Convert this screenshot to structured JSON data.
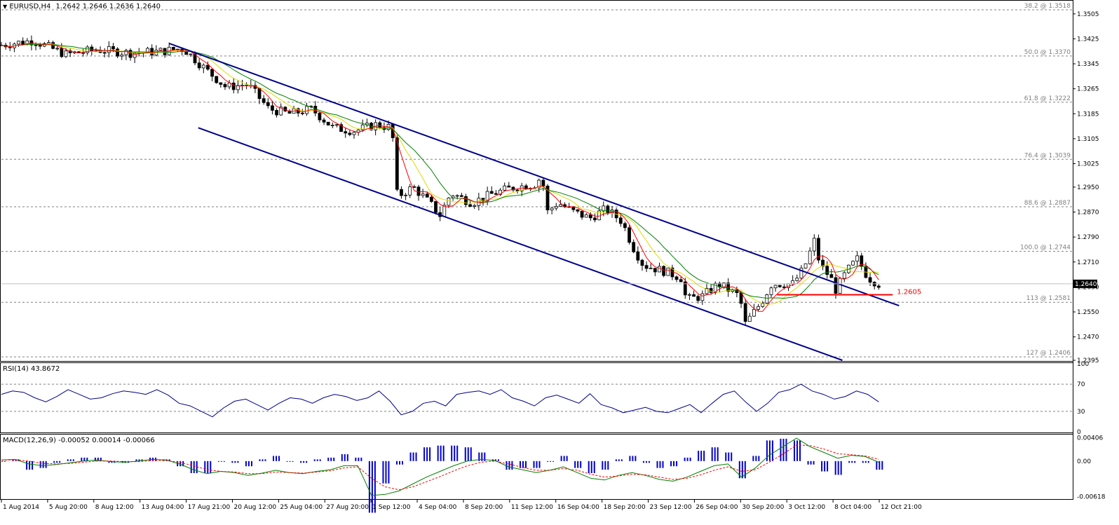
{
  "header": {
    "symbol_label": "EURUSD,H4",
    "ohlc": "1.2642 1.2646 1.2636 1.2640"
  },
  "rsi_label": "RSI(14) 43.8672",
  "macd_label": "MACD(12,26,9) -0.00052 0.00014 -0.00066",
  "chart_data": [
    {
      "type": "candlestick",
      "name": "EURUSD,H4",
      "ylim": [
        1.2395,
        1.3545
      ],
      "y_ticks": [
        "1.3505",
        "1.3425",
        "1.3345",
        "1.3265",
        "1.3185",
        "1.3105",
        "1.3025",
        "1.2950",
        "1.2870",
        "1.2790",
        "1.2710",
        "1.2630",
        "1.2550",
        "1.2470",
        "1.2395"
      ],
      "x_ticks": [
        "1 Aug 2014",
        "5 Aug 20:00",
        "8 Aug 12:00",
        "13 Aug 04:00",
        "17 Aug 21:00",
        "20 Aug 12:00",
        "25 Aug 04:00",
        "27 Aug 20:00",
        "1 Sep 12:00",
        "4 Sep 04:00",
        "8 Sep 20:00",
        "11 Sep 12:00",
        "16 Sep 04:00",
        "18 Sep 20:00",
        "23 Sep 12:00",
        "26 Sep 04:00",
        "30 Sep 20:00",
        "3 Oct 12:00",
        "8 Oct 04:00",
        "12 Oct 21:00"
      ],
      "current_price": "1.2640",
      "fib_levels": [
        {
          "label": "38.2 @ 1.3518",
          "price": 1.3518
        },
        {
          "label": "50.0 @ 1.3370",
          "price": 1.337
        },
        {
          "label": "61.8 @ 1.3222",
          "price": 1.3222
        },
        {
          "label": "76.4 @ 1.3039",
          "price": 1.3039
        },
        {
          "label": "88.6 @ 1.2887",
          "price": 1.2887
        },
        {
          "label": "100.0 @ 1.2744",
          "price": 1.2744
        },
        {
          "label": "113 @ 1.2581",
          "price": 1.2581
        },
        {
          "label": "127 @ 1.2406",
          "price": 1.2406
        }
      ],
      "support": {
        "label": "1.2605",
        "price": 1.2605
      },
      "channel": {
        "upper": [
          {
            "bar": 0.157,
            "price": 1.341
          },
          {
            "bar": 0.839,
            "price": 1.257
          }
        ],
        "lower": [
          {
            "bar": 0.184,
            "price": 1.314
          },
          {
            "bar": 0.786,
            "price": 1.2395
          }
        ]
      },
      "price_path": [
        [
          0,
          1.3405
        ],
        [
          0.03,
          1.342
        ],
        [
          0.06,
          1.3375
        ],
        [
          0.09,
          1.339
        ],
        [
          0.12,
          1.338
        ],
        [
          0.15,
          1.3385
        ],
        [
          0.17,
          1.3395
        ],
        [
          0.19,
          1.333
        ],
        [
          0.21,
          1.327
        ],
        [
          0.23,
          1.328
        ],
        [
          0.25,
          1.32
        ],
        [
          0.27,
          1.3185
        ],
        [
          0.29,
          1.32
        ],
        [
          0.31,
          1.314
        ],
        [
          0.33,
          1.313
        ],
        [
          0.35,
          1.315
        ],
        [
          0.365,
          1.314
        ],
        [
          0.37,
          1.292
        ],
        [
          0.385,
          1.295
        ],
        [
          0.4,
          1.29
        ],
        [
          0.41,
          1.286
        ],
        [
          0.42,
          1.293
        ],
        [
          0.44,
          1.29
        ],
        [
          0.46,
          1.293
        ],
        [
          0.48,
          1.295
        ],
        [
          0.5,
          1.296
        ],
        [
          0.505,
          1.299
        ],
        [
          0.51,
          1.287
        ],
        [
          0.52,
          1.29
        ],
        [
          0.535,
          1.287
        ],
        [
          0.55,
          1.285
        ],
        [
          0.565,
          1.288
        ],
        [
          0.58,
          1.284
        ],
        [
          0.59,
          1.276
        ],
        [
          0.6,
          1.27
        ],
        [
          0.62,
          1.268
        ],
        [
          0.635,
          1.266
        ],
        [
          0.64,
          1.259
        ],
        [
          0.655,
          1.26
        ],
        [
          0.67,
          1.264
        ],
        [
          0.68,
          1.262
        ],
        [
          0.69,
          1.26
        ],
        [
          0.695,
          1.251
        ],
        [
          0.71,
          1.258
        ],
        [
          0.72,
          1.264
        ],
        [
          0.74,
          1.264
        ],
        [
          0.75,
          1.269
        ],
        [
          0.76,
          1.278
        ],
        [
          0.765,
          1.27
        ],
        [
          0.775,
          1.266
        ],
        [
          0.78,
          1.262
        ],
        [
          0.79,
          1.268
        ],
        [
          0.8,
          1.272
        ],
        [
          0.81,
          1.266
        ],
        [
          0.82,
          1.264
        ]
      ]
    },
    {
      "type": "line",
      "name": "RSI(14)",
      "ylim": [
        0,
        100
      ],
      "y_ticks": [
        "100",
        "70",
        "30",
        "0"
      ],
      "last": 43.8672,
      "values": [
        55,
        60,
        58,
        50,
        44,
        52,
        62,
        55,
        48,
        50,
        56,
        60,
        58,
        55,
        62,
        54,
        42,
        38,
        30,
        22,
        35,
        45,
        48,
        40,
        32,
        42,
        50,
        48,
        42,
        50,
        55,
        52,
        46,
        50,
        60,
        45,
        25,
        30,
        42,
        45,
        38,
        55,
        58,
        60,
        55,
        62,
        50,
        45,
        38,
        50,
        54,
        48,
        42,
        56,
        40,
        35,
        28,
        32,
        36,
        30,
        28,
        34,
        40,
        28,
        42,
        55,
        60,
        44,
        30,
        42,
        58,
        62,
        70,
        60,
        55,
        48,
        52,
        60,
        55,
        44
      ]
    },
    {
      "type": "line",
      "name": "MACD(12,26,9)",
      "ylim": [
        -0.0065,
        0.0045
      ],
      "y_ticks": [
        "0.00406",
        "0.00",
        "-0.00618"
      ],
      "values_text": "-0.00052 0.00014 -0.00066",
      "macd": [
        0.0002,
        0.0003,
        -0.0005,
        -0.0008,
        -0.0006,
        -0.0003,
        0.0,
        0.0002,
        -0.0001,
        -0.0002,
        0.0,
        0.0003,
        0.0002,
        -0.0005,
        -0.0015,
        -0.0022,
        -0.0018,
        -0.002,
        -0.0025,
        -0.0021,
        -0.0016,
        -0.002,
        -0.0022,
        -0.0018,
        -0.0015,
        -0.0008,
        -0.0008,
        -0.006,
        -0.0058,
        -0.0052,
        -0.004,
        -0.0028,
        -0.0018,
        -0.0008,
        0.0,
        0.0003,
        0.0001,
        -0.001,
        -0.0015,
        -0.002,
        -0.0016,
        -0.001,
        -0.002,
        -0.003,
        -0.0033,
        -0.0025,
        -0.002,
        -0.0025,
        -0.0032,
        -0.0035,
        -0.0028,
        -0.0018,
        -0.0008,
        -0.0005,
        -0.0028,
        -0.0012,
        0.001,
        0.0025,
        0.004,
        0.0025,
        0.0015,
        0.0005,
        0.001,
        0.0008,
        -0.0002
      ],
      "signal": [
        0.0002,
        0.0002,
        0.0,
        -0.0004,
        -0.0005,
        -0.0004,
        -0.0002,
        0.0,
        0.0,
        -0.0001,
        -0.0001,
        0.0001,
        0.0001,
        -0.0002,
        -0.0008,
        -0.0015,
        -0.0018,
        -0.0019,
        -0.0022,
        -0.0022,
        -0.0019,
        -0.002,
        -0.0021,
        -0.0019,
        -0.0017,
        -0.0012,
        -0.001,
        -0.003,
        -0.0045,
        -0.005,
        -0.0045,
        -0.0036,
        -0.0027,
        -0.0017,
        -0.0008,
        -0.0002,
        0.0,
        -0.0005,
        -0.0011,
        -0.0016,
        -0.0016,
        -0.0013,
        -0.0016,
        -0.0023,
        -0.0028,
        -0.0026,
        -0.0023,
        -0.0024,
        -0.0028,
        -0.0032,
        -0.003,
        -0.0024,
        -0.0016,
        -0.001,
        -0.0018,
        -0.0015,
        -0.0002,
        0.0012,
        0.0028,
        0.0027,
        0.0021,
        0.0013,
        0.0011,
        0.0009,
        0.0003
      ]
    }
  ],
  "colors": {
    "channel": "#00008b",
    "support": "#ff0000",
    "ma_fast": "#ff0000",
    "ma_slow": "#008000",
    "ma_mid": "#dcdc00",
    "rsi": "#00008b",
    "macd_hist": "#0000cd",
    "macd_signal": "#ff0000",
    "macd_main": "#008000",
    "fib_line": "#808080"
  }
}
